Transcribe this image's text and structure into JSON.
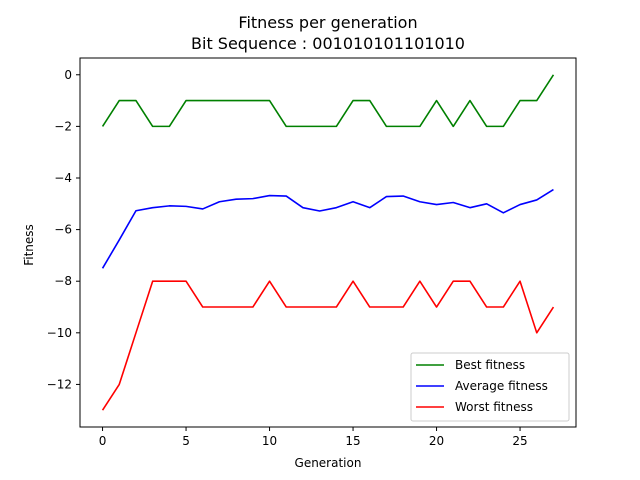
{
  "chart_data": {
    "type": "line",
    "title": "Fitness per generation",
    "subtitle": "Bit Sequence : 001010101101010",
    "xlabel": "Generation",
    "ylabel": "Fitness",
    "xlim": [
      -1.35,
      28.35
    ],
    "ylim": [
      -13.65,
      0.65
    ],
    "xticks": [
      0,
      5,
      10,
      15,
      20,
      25
    ],
    "xtick_labels": [
      "0",
      "5",
      "10",
      "15",
      "20",
      "25"
    ],
    "yticks": [
      0,
      -2,
      -4,
      -6,
      -8,
      -10,
      -12
    ],
    "ytick_labels": [
      "0",
      "−2",
      "−4",
      "−6",
      "−8",
      "−10",
      "−12"
    ],
    "grid": false,
    "legend_position": "lower-right",
    "x": [
      0,
      1,
      2,
      3,
      4,
      5,
      6,
      7,
      8,
      9,
      10,
      11,
      12,
      13,
      14,
      15,
      16,
      17,
      18,
      19,
      20,
      21,
      22,
      23,
      24,
      25,
      26,
      27
    ],
    "series": [
      {
        "name": "Best fitness",
        "color": "#008000",
        "values": [
          -2,
          -1,
          -1,
          -2,
          -2,
          -1,
          -1,
          -1,
          -1,
          -1,
          -1,
          -2,
          -2,
          -2,
          -2,
          -1,
          -1,
          -2,
          -2,
          -2,
          -1,
          -2,
          -1,
          -2,
          -2,
          -1,
          -1,
          0
        ]
      },
      {
        "name": "Average fitness",
        "color": "#0000ff",
        "values": [
          -7.5,
          -6.4,
          -5.27,
          -5.15,
          -5.08,
          -5.1,
          -5.2,
          -4.92,
          -4.82,
          -4.8,
          -4.68,
          -4.7,
          -5.15,
          -5.28,
          -5.15,
          -4.92,
          -5.15,
          -4.72,
          -4.7,
          -4.92,
          -5.03,
          -4.95,
          -5.15,
          -5.0,
          -5.35,
          -5.03,
          -4.85,
          -4.45
        ]
      },
      {
        "name": "Worst fitness",
        "color": "#ff0000",
        "values": [
          -13,
          -12,
          -10,
          -8,
          -8,
          -8,
          -9,
          -9,
          -9,
          -9,
          -8,
          -9,
          -9,
          -9,
          -9,
          -8,
          -9,
          -9,
          -9,
          -8,
          -9,
          -8,
          -8,
          -9,
          -9,
          -8,
          -10,
          -9
        ]
      }
    ]
  }
}
